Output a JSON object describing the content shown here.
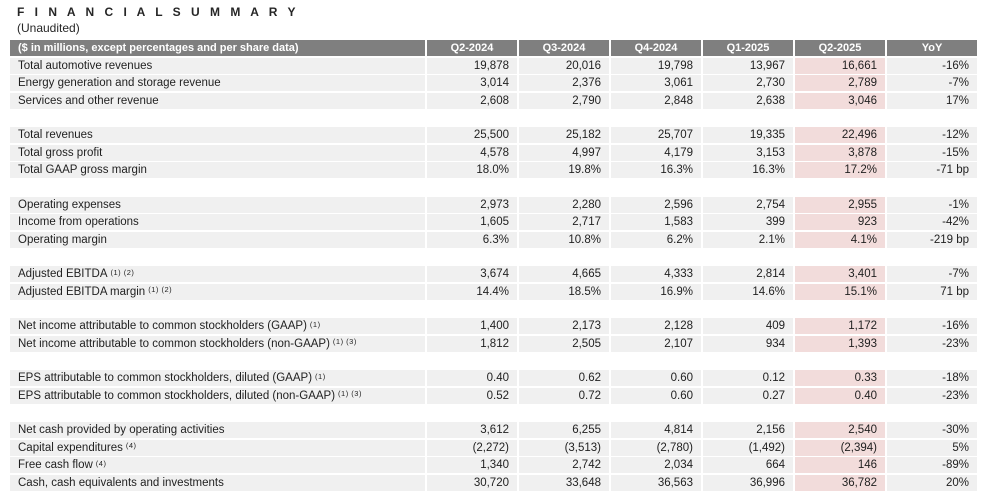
{
  "title": "F I N A N C I A L   S U M M A R Y",
  "subtitle": "(Unaudited)",
  "colors": {
    "header_bg": "#7f7f7f",
    "header_text": "#ffffff",
    "row_bg": "#f0f0f0",
    "highlight_bg": "#f2dcdb",
    "text": "#1f1f1f"
  },
  "table": {
    "label_header": "($ in millions, except percentages and per share data)",
    "columns": [
      "Q2-2024",
      "Q3-2024",
      "Q4-2024",
      "Q1-2025",
      "Q2-2025",
      "YoY"
    ],
    "highlight_column": "Q2-2025",
    "groups": [
      {
        "rows": [
          {
            "label": "Total automotive revenues",
            "values": [
              "19,878",
              "20,016",
              "19,798",
              "13,967",
              "16,661",
              "-16%"
            ]
          },
          {
            "label": "Energy generation and storage revenue",
            "values": [
              "3,014",
              "2,376",
              "3,061",
              "2,730",
              "2,789",
              "-7%"
            ]
          },
          {
            "label": "Services and other revenue",
            "values": [
              "2,608",
              "2,790",
              "2,848",
              "2,638",
              "3,046",
              "17%"
            ]
          }
        ]
      },
      {
        "rows": [
          {
            "label": "Total revenues",
            "values": [
              "25,500",
              "25,182",
              "25,707",
              "19,335",
              "22,496",
              "-12%"
            ]
          },
          {
            "label": "Total gross profit",
            "values": [
              "4,578",
              "4,997",
              "4,179",
              "3,153",
              "3,878",
              "-15%"
            ]
          },
          {
            "label": "Total GAAP gross margin",
            "values": [
              "18.0%",
              "19.8%",
              "16.3%",
              "16.3%",
              "17.2%",
              "-71 bp"
            ]
          }
        ]
      },
      {
        "rows": [
          {
            "label": "Operating expenses",
            "values": [
              "2,973",
              "2,280",
              "2,596",
              "2,754",
              "2,955",
              "-1%"
            ]
          },
          {
            "label": "Income from operations",
            "values": [
              "1,605",
              "2,717",
              "1,583",
              "399",
              "923",
              "-42%"
            ]
          },
          {
            "label": "Operating margin",
            "values": [
              "6.3%",
              "10.8%",
              "6.2%",
              "2.1%",
              "4.1%",
              "-219 bp"
            ]
          }
        ]
      },
      {
        "rows": [
          {
            "label": "Adjusted EBITDA",
            "sup": "(1) (2)",
            "values": [
              "3,674",
              "4,665",
              "4,333",
              "2,814",
              "3,401",
              "-7%"
            ]
          },
          {
            "label": "Adjusted EBITDA margin",
            "sup": "(1) (2)",
            "values": [
              "14.4%",
              "18.5%",
              "16.9%",
              "14.6%",
              "15.1%",
              "71 bp"
            ]
          }
        ]
      },
      {
        "rows": [
          {
            "label": "Net income attributable to common stockholders (GAAP)",
            "sup": "(1)",
            "values": [
              "1,400",
              "2,173",
              "2,128",
              "409",
              "1,172",
              "-16%"
            ]
          },
          {
            "label": "Net income attributable to common stockholders (non-GAAP)",
            "sup": "(1) (3)",
            "values": [
              "1,812",
              "2,505",
              "2,107",
              "934",
              "1,393",
              "-23%"
            ]
          }
        ]
      },
      {
        "rows": [
          {
            "label": "EPS attributable to common stockholders, diluted (GAAP)",
            "sup": "(1)",
            "values": [
              "0.40",
              "0.62",
              "0.60",
              "0.12",
              "0.33",
              "-18%"
            ]
          },
          {
            "label": "EPS attributable to common stockholders, diluted (non-GAAP)",
            "sup": "(1) (3)",
            "values": [
              "0.52",
              "0.72",
              "0.60",
              "0.27",
              "0.40",
              "-23%"
            ]
          }
        ]
      },
      {
        "rows": [
          {
            "label": "Net cash provided by operating activities",
            "values": [
              "3,612",
              "6,255",
              "4,814",
              "2,156",
              "2,540",
              "-30%"
            ]
          },
          {
            "label": "Capital expenditures",
            "sup": "(4)",
            "values": [
              "(2,272)",
              "(3,513)",
              "(2,780)",
              "(1,492)",
              "(2,394)",
              "5%"
            ]
          },
          {
            "label": "Free cash flow",
            "sup": "(4)",
            "values": [
              "1,340",
              "2,742",
              "2,034",
              "664",
              "146",
              "-89%"
            ]
          },
          {
            "label": "Cash, cash equivalents and investments",
            "values": [
              "30,720",
              "33,648",
              "36,563",
              "36,996",
              "36,782",
              "20%"
            ]
          }
        ]
      }
    ]
  }
}
